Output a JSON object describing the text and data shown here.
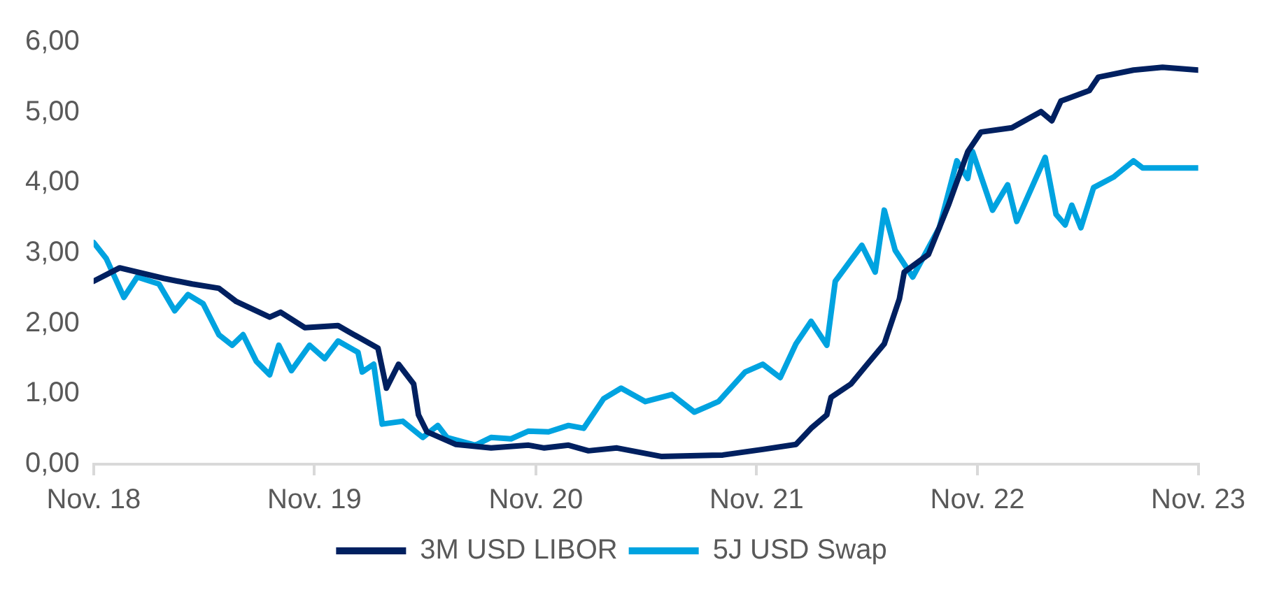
{
  "chart_data": {
    "type": "line",
    "xlim": [
      "2018-11-01",
      "2023-11-01"
    ],
    "xticks": [
      {
        "value": "2018-11-01",
        "label": "Nov. 18"
      },
      {
        "value": "2019-11-01",
        "label": "Nov. 19"
      },
      {
        "value": "2020-11-01",
        "label": "Nov. 20"
      },
      {
        "value": "2021-11-01",
        "label": "Nov. 21"
      },
      {
        "value": "2022-11-01",
        "label": "Nov. 22"
      },
      {
        "value": "2023-11-01",
        "label": "Nov. 23"
      }
    ],
    "ylim": [
      0,
      6
    ],
    "yticks": [
      {
        "value": 0,
        "label": "0,00"
      },
      {
        "value": 1,
        "label": "1,00"
      },
      {
        "value": 2,
        "label": "2,00"
      },
      {
        "value": 3,
        "label": "3,00"
      },
      {
        "value": 4,
        "label": "4,00"
      },
      {
        "value": 5,
        "label": "5,00"
      },
      {
        "value": 6,
        "label": "6,00"
      }
    ],
    "grid": false,
    "legend": "bottom",
    "marker": "none",
    "line_style": "solid",
    "series": [
      {
        "name": "3M USD LIBOR",
        "color": "#002060",
        "x": [
          "2018-11-01",
          "2018-12-14",
          "2019-02-25",
          "2019-04-13",
          "2019-05-27",
          "2019-06-25",
          "2019-08-19",
          "2019-09-06",
          "2019-10-16",
          "2019-12-10",
          "2019-12-28",
          "2020-02-14",
          "2020-02-28",
          "2020-03-19",
          "2020-04-13",
          "2020-04-21",
          "2020-05-05",
          "2020-06-22",
          "2020-08-19",
          "2020-10-20",
          "2020-11-15",
          "2020-12-25",
          "2021-01-27",
          "2021-03-15",
          "2021-05-27",
          "2021-09-06",
          "2021-11-11",
          "2022-01-05",
          "2022-01-30",
          "2022-02-25",
          "2022-03-04",
          "2022-04-06",
          "2022-05-01",
          "2022-05-31",
          "2022-06-25",
          "2022-07-03",
          "2022-08-12",
          "2022-09-14",
          "2022-10-16",
          "2022-11-07",
          "2022-12-28",
          "2023-02-14",
          "2023-03-04",
          "2023-03-19",
          "2023-05-05",
          "2023-05-20",
          "2023-07-17",
          "2023-09-03",
          "2023-11-01"
        ],
        "values": [
          2.6,
          2.79,
          2.64,
          2.56,
          2.5,
          2.31,
          2.09,
          2.16,
          1.94,
          1.97,
          1.88,
          1.65,
          1.08,
          1.42,
          1.14,
          0.7,
          0.46,
          0.28,
          0.23,
          0.27,
          0.23,
          0.27,
          0.19,
          0.23,
          0.11,
          0.13,
          0.21,
          0.28,
          0.51,
          0.7,
          0.95,
          1.14,
          1.4,
          1.71,
          2.35,
          2.73,
          2.98,
          3.68,
          4.44,
          4.72,
          4.78,
          5.01,
          4.88,
          5.16,
          5.31,
          5.5,
          5.6,
          5.64,
          5.6
        ]
      },
      {
        "name": "5J USD Swap",
        "color": "#00a3e0",
        "x": [
          "2018-11-01",
          "2018-11-22",
          "2018-12-21",
          "2019-01-12",
          "2019-02-17",
          "2019-03-15",
          "2019-04-06",
          "2019-05-01",
          "2019-05-27",
          "2019-06-18",
          "2019-07-06",
          "2019-07-28",
          "2019-08-19",
          "2019-09-03",
          "2019-09-24",
          "2019-10-24",
          "2019-11-18",
          "2019-12-10",
          "2020-01-12",
          "2020-01-19",
          "2020-02-07",
          "2020-02-21",
          "2020-03-26",
          "2020-04-28",
          "2020-05-23",
          "2020-06-07",
          "2020-07-24",
          "2020-08-19",
          "2020-09-21",
          "2020-10-20",
          "2020-11-22",
          "2020-12-25",
          "2021-01-19",
          "2021-02-21",
          "2021-03-22",
          "2021-05-01",
          "2021-06-14",
          "2021-07-21",
          "2021-08-30",
          "2021-10-13",
          "2021-11-11",
          "2021-12-10",
          "2022-01-05",
          "2022-01-30",
          "2022-02-25",
          "2022-03-11",
          "2022-04-24",
          "2022-05-16",
          "2022-05-31",
          "2022-06-18",
          "2022-07-17",
          "2022-08-30",
          "2022-09-28",
          "2022-10-16",
          "2022-10-24",
          "2022-11-26",
          "2022-12-21",
          "2023-01-05",
          "2023-02-21",
          "2023-03-11",
          "2023-03-26",
          "2023-04-06",
          "2023-04-21",
          "2023-05-12",
          "2023-06-14",
          "2023-07-17",
          "2023-08-01",
          "2023-11-01"
        ],
        "values": [
          3.15,
          2.92,
          2.37,
          2.66,
          2.56,
          2.18,
          2.41,
          2.28,
          1.84,
          1.69,
          1.84,
          1.46,
          1.27,
          1.69,
          1.33,
          1.69,
          1.5,
          1.75,
          1.59,
          1.31,
          1.42,
          0.57,
          0.61,
          0.38,
          0.55,
          0.38,
          0.27,
          0.38,
          0.36,
          0.47,
          0.46,
          0.55,
          0.51,
          0.93,
          1.08,
          0.89,
          0.99,
          0.74,
          0.89,
          1.31,
          1.42,
          1.23,
          1.71,
          2.03,
          1.69,
          2.6,
          3.11,
          2.73,
          3.61,
          3.04,
          2.66,
          3.36,
          4.31,
          4.06,
          4.44,
          3.61,
          3.97,
          3.45,
          4.36,
          3.55,
          3.4,
          3.68,
          3.36,
          3.93,
          4.08,
          4.31,
          4.21,
          4.21
        ]
      }
    ]
  }
}
